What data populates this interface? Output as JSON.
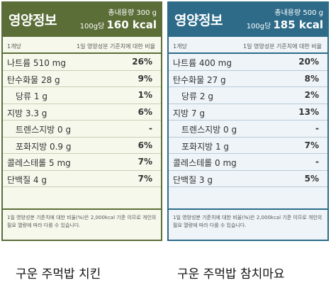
{
  "labels": [
    {
      "title": "영양정보",
      "total": "총내용량 300 g",
      "per": "100g당",
      "kcal": "160 kcal",
      "sub_left": "1개당",
      "sub_right": "1일 영양성분 기준치에 대한 비율",
      "rows": [
        {
          "name": "나트륨 510 mg",
          "pct": "26%",
          "indent": false
        },
        {
          "name": "탄수화물 28 g",
          "pct": "9%",
          "indent": false
        },
        {
          "name": "당류 1 g",
          "pct": "1%",
          "indent": true
        },
        {
          "name": "지방 3.3 g",
          "pct": "6%",
          "indent": false
        },
        {
          "name": "트렌스지방 0 g",
          "pct": "-",
          "indent": true
        },
        {
          "name": "포화지방 0.9 g",
          "pct": "6%",
          "indent": true
        },
        {
          "name": "콜레스테롤 5 mg",
          "pct": "7%",
          "indent": false
        },
        {
          "name": "단백질 4 g",
          "pct": "7%",
          "indent": false
        }
      ],
      "footnote": "1일 영양성분 기준치에 대한 비율(%)은 2,000kcal 기준 이므로 개인의 필요 열량에 따라 다를 수 있습니다."
    },
    {
      "title": "영양정보",
      "total": "총내용량 500 g",
      "per": "100g당",
      "kcal": "185 kcal",
      "sub_left": "1개당",
      "sub_right": "1일 영양성분 기준치에 대한 비율",
      "rows": [
        {
          "name": "나트륨 400 mg",
          "pct": "20%",
          "indent": false
        },
        {
          "name": "탄수화물 27 g",
          "pct": "8%",
          "indent": false
        },
        {
          "name": "당류 2 g",
          "pct": "2%",
          "indent": true
        },
        {
          "name": "지방 7 g",
          "pct": "13%",
          "indent": false
        },
        {
          "name": "트렌스지방 0 g",
          "pct": "-",
          "indent": true
        },
        {
          "name": "포화지방 1 g",
          "pct": "7%",
          "indent": true
        },
        {
          "name": "콜레스테롤 0 mg",
          "pct": "-",
          "indent": false
        },
        {
          "name": "단백질 3 g",
          "pct": "5%",
          "indent": false
        }
      ],
      "footnote": "1일 영양성분 기준치에 대한 비율(%)은 2,000kcal 기준 이므로 개인의 필요 열량에 따라 다를 수 있습니다."
    }
  ],
  "captions": [
    "구운 주먹밥 치킨",
    "구운 주먹밥 참치마요"
  ],
  "colors": {
    "green": "#5b6e38",
    "blue": "#2e6b89"
  }
}
